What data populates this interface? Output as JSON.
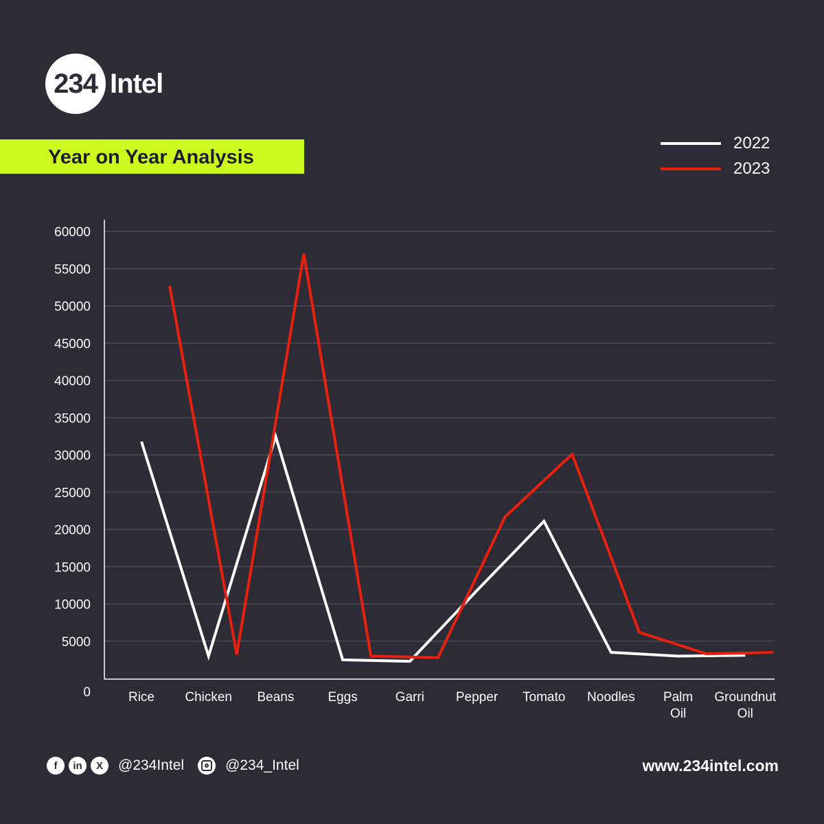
{
  "brand": {
    "logo_number": "234",
    "logo_word": "Intel"
  },
  "chart_data": {
    "type": "line",
    "title": "Year on Year Analysis",
    "categories": [
      "Rice",
      "Chicken",
      "Beans",
      "Eggs",
      "Garri",
      "Pepper",
      "Tomato",
      "Noodles",
      "Palm Oil",
      "Groundnut Oil"
    ],
    "category_lines": [
      [
        "Rice"
      ],
      [
        "Chicken"
      ],
      [
        "Beans"
      ],
      [
        "Eggs"
      ],
      [
        "Garri"
      ],
      [
        "Pepper"
      ],
      [
        "Tomato"
      ],
      [
        "Noodles"
      ],
      [
        "Palm",
        "Oil"
      ],
      [
        "Groundnut",
        "Oil"
      ]
    ],
    "ylim": [
      0,
      60000
    ],
    "yticks": [
      0,
      5000,
      10000,
      15000,
      20000,
      25000,
      30000,
      35000,
      40000,
      45000,
      50000,
      55000,
      60000
    ],
    "ytick_labels": [
      "0",
      "5000",
      "10000",
      "15000",
      "20000",
      "25000",
      "30000",
      "35000",
      "40000",
      "45000",
      "50000",
      "55000",
      "60000"
    ],
    "grid": true,
    "legend_position": "top-right",
    "series": [
      {
        "name": "2022",
        "color": "#ffffff",
        "x": [
          0,
          1,
          2,
          3,
          4,
          5,
          6,
          7,
          8,
          9
        ],
        "values": [
          31800,
          3000,
          32500,
          2500,
          2300,
          11800,
          21100,
          3500,
          3000,
          3100
        ]
      },
      {
        "name": "2023",
        "color": "#e8210f",
        "x": [
          0.42,
          1.42,
          2.42,
          3.42,
          4.42,
          5.42,
          6.42,
          7.42,
          8.42,
          9.42
        ],
        "values": [
          52700,
          3200,
          57000,
          3000,
          2800,
          21700,
          30100,
          6200,
          3300,
          3500
        ]
      }
    ]
  },
  "footer": {
    "social_handle": "@234Intel",
    "instagram_handle": "@234_Intel",
    "website": "www.234intel.com",
    "icons": [
      "facebook-icon",
      "linkedin-icon",
      "x-icon",
      "instagram-icon"
    ]
  }
}
